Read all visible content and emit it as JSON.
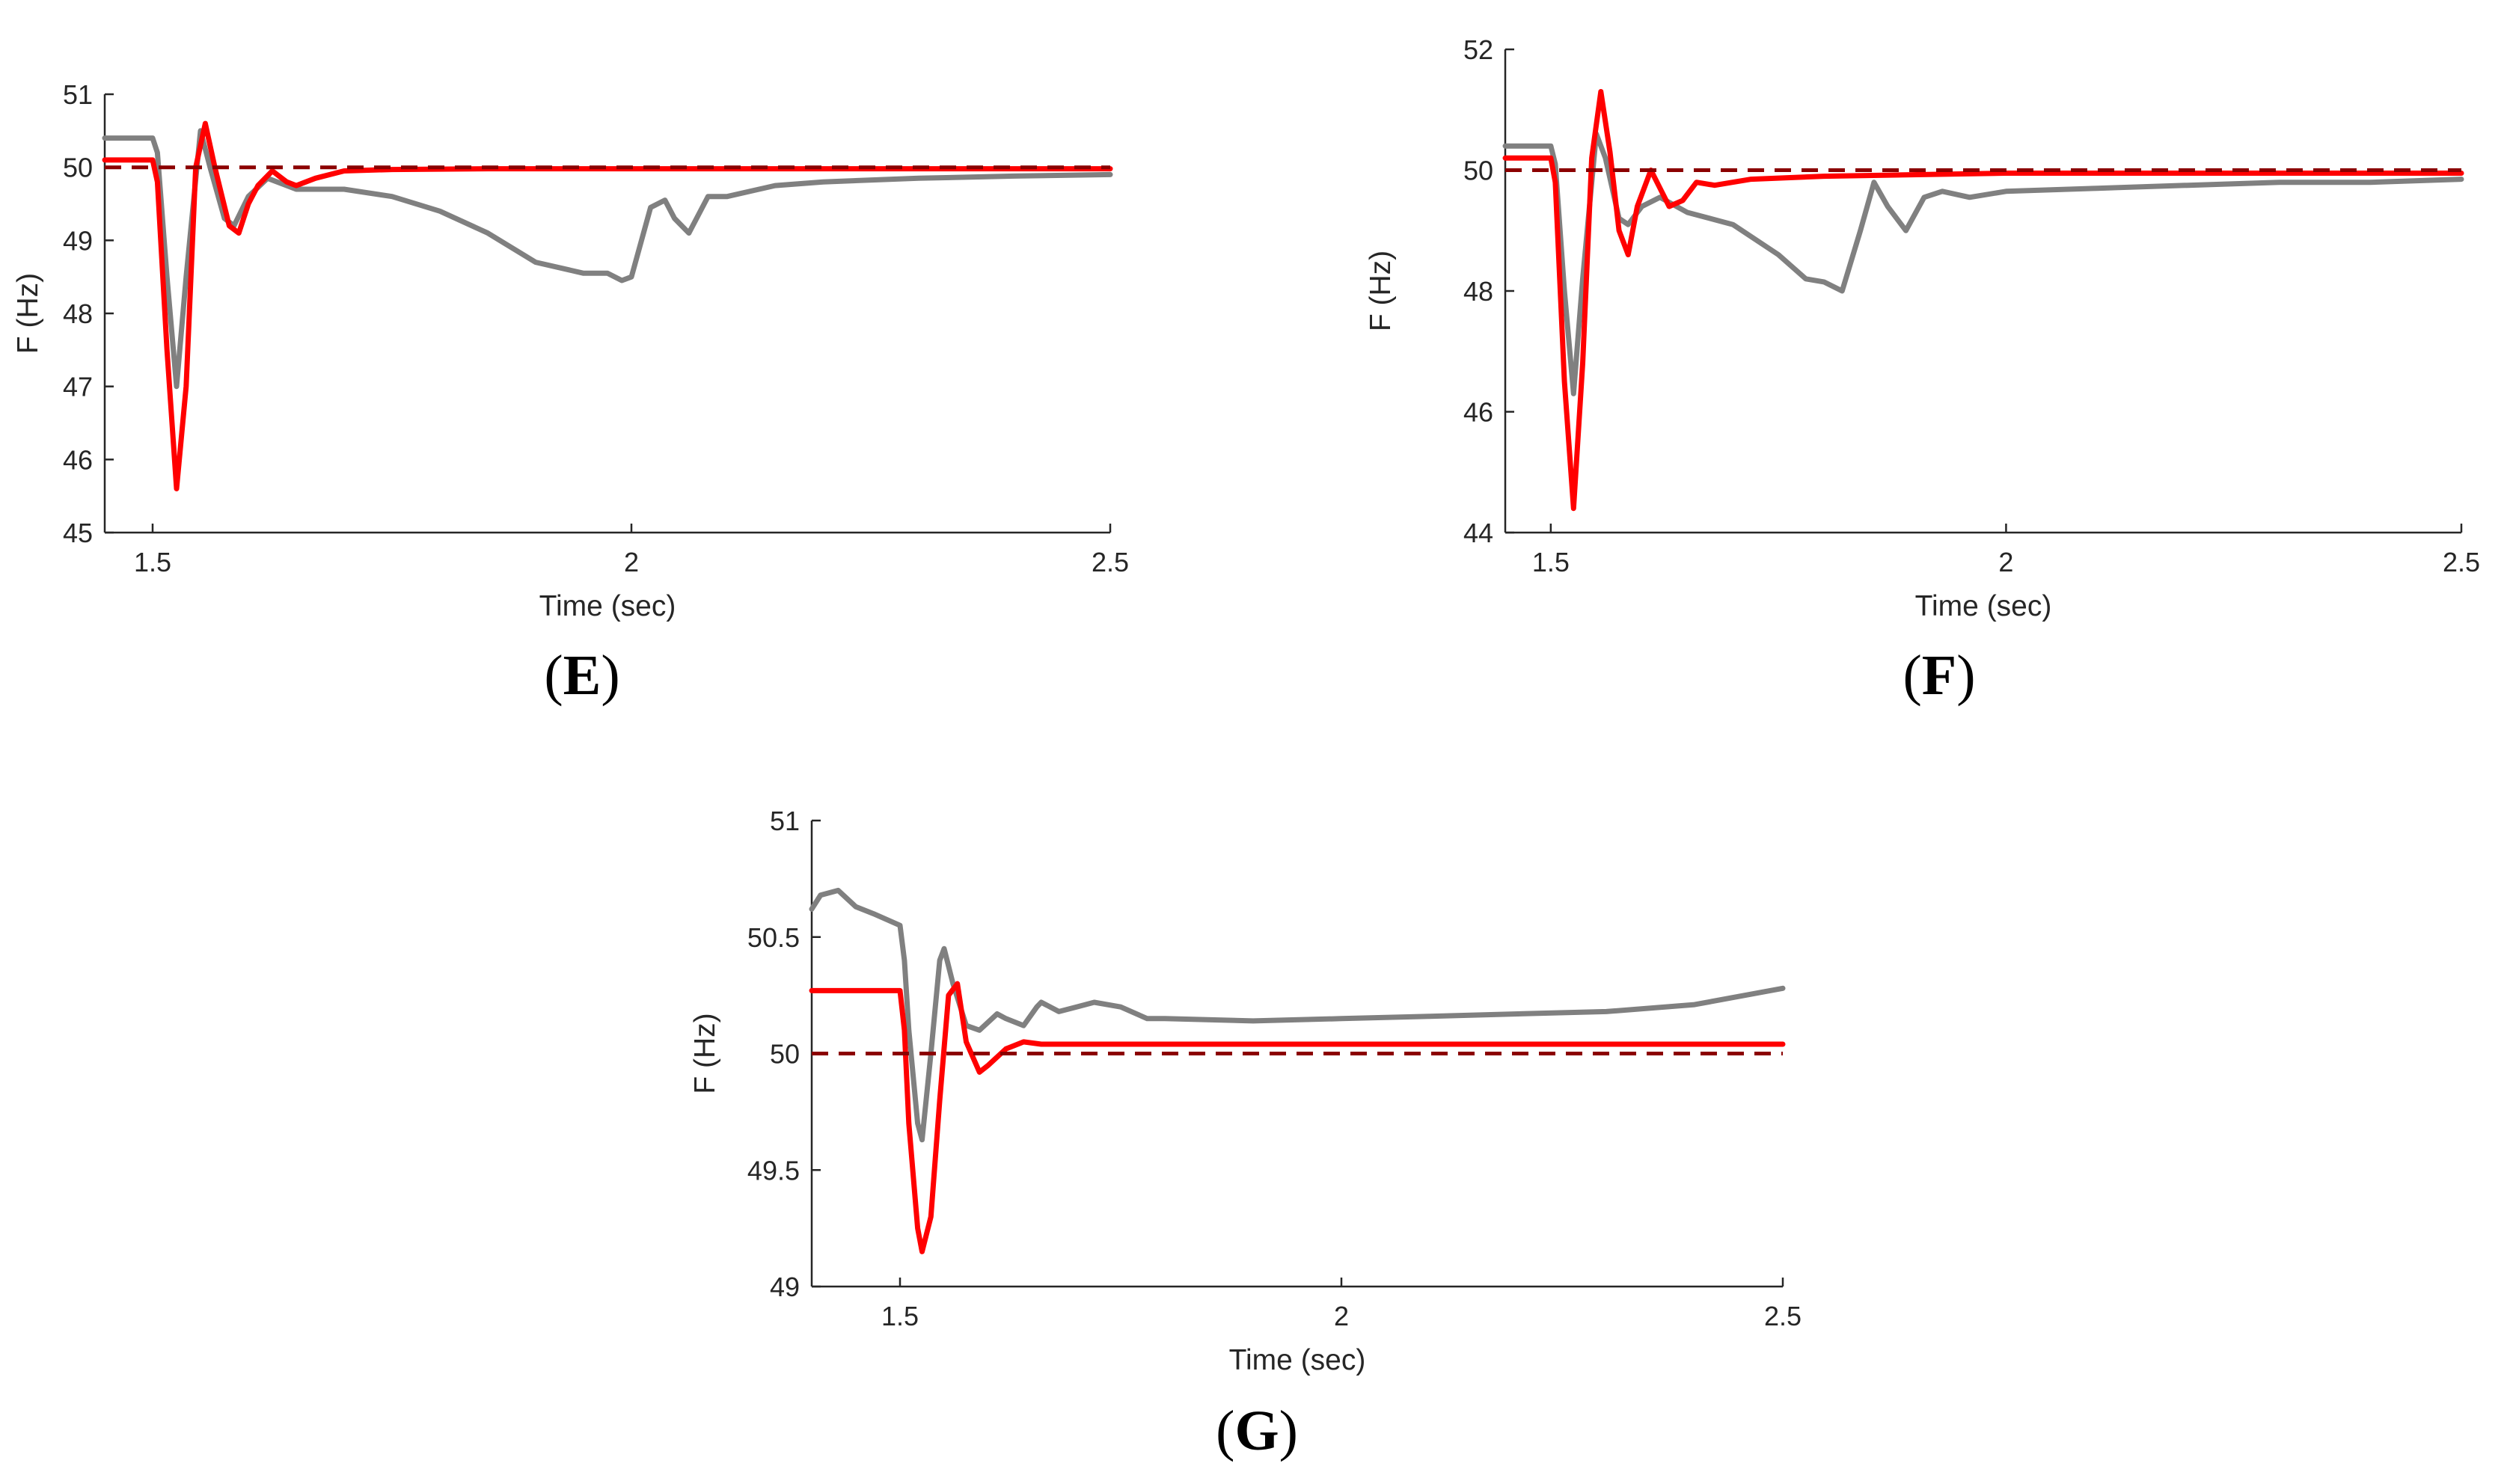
{
  "chart_data": [
    {
      "type": "line",
      "panel_label": "E",
      "xlabel": "Time (sec)",
      "ylabel": "F (Hz)",
      "xlim": [
        1.45,
        2.5
      ],
      "ylim": [
        45,
        51
      ],
      "xticks": [
        1.5,
        2,
        2.5
      ],
      "xtick_labels": [
        "1.5",
        "2",
        "2.5"
      ],
      "yticks": [
        45,
        46,
        47,
        48,
        49,
        50,
        51
      ],
      "ytick_labels": [
        "45",
        "46",
        "47",
        "48",
        "49",
        "50",
        "51"
      ],
      "grid": false,
      "series": [
        {
          "name": "reference",
          "style": "dashed",
          "color": "#8b0000",
          "x": [
            1.45,
            2.5
          ],
          "y": [
            50.0,
            50.0
          ]
        },
        {
          "name": "gray",
          "style": "solid",
          "color": "#808080",
          "x": [
            1.45,
            1.5,
            1.505,
            1.515,
            1.525,
            1.535,
            1.55,
            1.56,
            1.575,
            1.585,
            1.6,
            1.62,
            1.65,
            1.7,
            1.75,
            1.8,
            1.85,
            1.9,
            1.95,
            1.975,
            1.99,
            2.0,
            2.02,
            2.035,
            2.045,
            2.06,
            2.08,
            2.1,
            2.15,
            2.2,
            2.3,
            2.4,
            2.5
          ],
          "y": [
            50.4,
            50.4,
            50.2,
            48.5,
            47.0,
            48.5,
            50.5,
            50.0,
            49.3,
            49.2,
            49.6,
            49.85,
            49.7,
            49.7,
            49.6,
            49.4,
            49.1,
            48.7,
            48.55,
            48.55,
            48.45,
            48.5,
            49.45,
            49.55,
            49.3,
            49.1,
            49.6,
            49.6,
            49.75,
            49.8,
            49.85,
            49.88,
            49.9
          ]
        },
        {
          "name": "red",
          "style": "solid",
          "color": "#ff0000",
          "x": [
            1.45,
            1.5,
            1.505,
            1.515,
            1.525,
            1.535,
            1.545,
            1.555,
            1.565,
            1.58,
            1.59,
            1.6,
            1.61,
            1.625,
            1.64,
            1.65,
            1.67,
            1.7,
            1.75,
            1.85,
            2.0,
            2.5
          ],
          "y": [
            50.1,
            50.1,
            49.8,
            47.5,
            45.6,
            47.0,
            50.0,
            50.6,
            50.0,
            49.2,
            49.1,
            49.5,
            49.75,
            49.95,
            49.8,
            49.75,
            49.85,
            49.95,
            49.97,
            49.98,
            49.98,
            49.98
          ]
        }
      ]
    },
    {
      "type": "line",
      "panel_label": "F",
      "xlabel": "Time (sec)",
      "ylabel": "F (Hz)",
      "xlim": [
        1.45,
        2.5
      ],
      "ylim": [
        44,
        52
      ],
      "xticks": [
        1.5,
        2,
        2.5
      ],
      "xtick_labels": [
        "1.5",
        "2",
        "2.5"
      ],
      "yticks": [
        44,
        46,
        48,
        50,
        52
      ],
      "ytick_labels": [
        "44",
        "46",
        "48",
        "50",
        "52"
      ],
      "grid": false,
      "series": [
        {
          "name": "reference",
          "style": "dashed",
          "color": "#8b0000",
          "x": [
            1.45,
            2.5
          ],
          "y": [
            50.0,
            50.0
          ]
        },
        {
          "name": "gray",
          "style": "solid",
          "color": "#808080",
          "x": [
            1.45,
            1.5,
            1.505,
            1.515,
            1.525,
            1.535,
            1.55,
            1.56,
            1.575,
            1.585,
            1.6,
            1.62,
            1.65,
            1.7,
            1.75,
            1.78,
            1.8,
            1.82,
            1.84,
            1.855,
            1.87,
            1.89,
            1.91,
            1.93,
            1.96,
            2.0,
            2.1,
            2.2,
            2.3,
            2.4,
            2.5
          ],
          "y": [
            50.4,
            50.4,
            50.1,
            48.0,
            46.3,
            48.2,
            50.6,
            50.2,
            49.2,
            49.1,
            49.4,
            49.55,
            49.3,
            49.1,
            48.6,
            48.2,
            48.15,
            48.0,
            49.0,
            49.8,
            49.4,
            49.0,
            49.55,
            49.65,
            49.55,
            49.65,
            49.7,
            49.75,
            49.8,
            49.8,
            49.85
          ]
        },
        {
          "name": "red",
          "style": "solid",
          "color": "#ff0000",
          "x": [
            1.45,
            1.5,
            1.505,
            1.515,
            1.525,
            1.535,
            1.545,
            1.555,
            1.565,
            1.575,
            1.585,
            1.595,
            1.61,
            1.62,
            1.63,
            1.645,
            1.66,
            1.68,
            1.72,
            1.8,
            2.0,
            2.5
          ],
          "y": [
            50.2,
            50.2,
            49.8,
            46.5,
            44.4,
            46.8,
            50.2,
            51.3,
            50.3,
            49.0,
            48.6,
            49.4,
            50.0,
            49.7,
            49.4,
            49.5,
            49.8,
            49.75,
            49.85,
            49.9,
            49.95,
            49.95
          ]
        }
      ]
    },
    {
      "type": "line",
      "panel_label": "G",
      "xlabel": "Time (sec)",
      "ylabel": "F (Hz)",
      "xlim": [
        1.4,
        2.5
      ],
      "ylim": [
        49,
        51
      ],
      "xticks": [
        1.5,
        2,
        2.5
      ],
      "xtick_labels": [
        "1.5",
        "2",
        "2.5"
      ],
      "yticks": [
        49,
        49.5,
        50,
        50.5,
        51
      ],
      "ytick_labels": [
        "49",
        "49.5",
        "50",
        "50.5",
        "51"
      ],
      "grid": false,
      "series": [
        {
          "name": "reference",
          "style": "dashed",
          "color": "#8b0000",
          "x": [
            1.4,
            2.5
          ],
          "y": [
            50.0,
            50.0
          ]
        },
        {
          "name": "gray",
          "style": "solid",
          "color": "#808080",
          "x": [
            1.4,
            1.41,
            1.43,
            1.45,
            1.47,
            1.5,
            1.505,
            1.51,
            1.52,
            1.525,
            1.535,
            1.545,
            1.55,
            1.56,
            1.575,
            1.59,
            1.61,
            1.62,
            1.64,
            1.655,
            1.66,
            1.68,
            1.7,
            1.72,
            1.75,
            1.78,
            1.8,
            1.9,
            2.0,
            2.1,
            2.2,
            2.3,
            2.4,
            2.5
          ],
          "y": [
            50.62,
            50.68,
            50.7,
            50.63,
            50.6,
            50.55,
            50.4,
            50.1,
            49.7,
            49.63,
            50.0,
            50.4,
            50.45,
            50.3,
            50.12,
            50.1,
            50.17,
            50.15,
            50.12,
            50.2,
            50.22,
            50.18,
            50.2,
            50.22,
            50.2,
            50.15,
            50.15,
            50.14,
            50.15,
            50.16,
            50.17,
            50.18,
            50.21,
            50.28
          ]
        },
        {
          "name": "red",
          "style": "solid",
          "color": "#ff0000",
          "x": [
            1.4,
            1.5,
            1.505,
            1.51,
            1.52,
            1.525,
            1.535,
            1.545,
            1.555,
            1.565,
            1.575,
            1.59,
            1.6,
            1.62,
            1.64,
            1.66,
            1.7,
            1.8,
            2.0,
            2.5
          ],
          "y": [
            50.27,
            50.27,
            50.1,
            49.7,
            49.25,
            49.15,
            49.3,
            49.8,
            50.25,
            50.3,
            50.05,
            49.92,
            49.95,
            50.02,
            50.05,
            50.04,
            50.04,
            50.04,
            50.04,
            50.04
          ]
        }
      ]
    }
  ]
}
